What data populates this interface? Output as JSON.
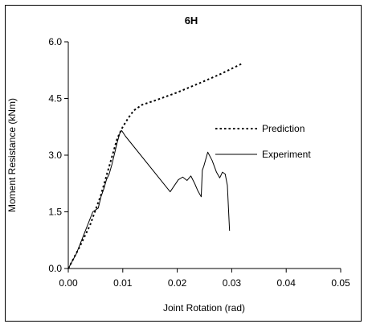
{
  "chart_data": {
    "type": "line",
    "title": "6H",
    "xlabel": "Joint Rotation (rad)",
    "ylabel": "Moment Resistance (kNm)",
    "xlim": [
      0,
      0.05
    ],
    "ylim": [
      0,
      6.0
    ],
    "x_ticks": [
      "0.00",
      "0.01",
      "0.02",
      "0.03",
      "0.04",
      "0.05"
    ],
    "y_ticks": [
      "0.0",
      "1.5",
      "3.0",
      "4.5",
      "6.0"
    ],
    "legend_position": "right",
    "series": [
      {
        "name": "Prediction",
        "style": "dotted",
        "color": "#000000",
        "points": [
          [
            0.0,
            0.0
          ],
          [
            0.002,
            0.55
          ],
          [
            0.004,
            1.15
          ],
          [
            0.006,
            1.95
          ],
          [
            0.007,
            2.45
          ],
          [
            0.008,
            2.95
          ],
          [
            0.009,
            3.45
          ],
          [
            0.01,
            3.75
          ],
          [
            0.011,
            3.98
          ],
          [
            0.012,
            4.18
          ],
          [
            0.0135,
            4.33
          ],
          [
            0.016,
            4.45
          ],
          [
            0.02,
            4.66
          ],
          [
            0.024,
            4.9
          ],
          [
            0.028,
            5.15
          ],
          [
            0.032,
            5.43
          ]
        ]
      },
      {
        "name": "Experiment",
        "style": "solid",
        "color": "#000000",
        "points": [
          [
            0.0,
            0.0
          ],
          [
            0.0015,
            0.4
          ],
          [
            0.003,
            0.95
          ],
          [
            0.0045,
            1.5
          ],
          [
            0.0055,
            1.6
          ],
          [
            0.006,
            1.9
          ],
          [
            0.0065,
            2.1
          ],
          [
            0.007,
            2.35
          ],
          [
            0.0075,
            2.5
          ],
          [
            0.008,
            2.75
          ],
          [
            0.0085,
            3.05
          ],
          [
            0.009,
            3.35
          ],
          [
            0.0095,
            3.6
          ],
          [
            0.0098,
            3.65
          ],
          [
            0.0105,
            3.5
          ],
          [
            0.0187,
            2.03
          ],
          [
            0.0202,
            2.35
          ],
          [
            0.021,
            2.42
          ],
          [
            0.0218,
            2.33
          ],
          [
            0.0225,
            2.45
          ],
          [
            0.0232,
            2.25
          ],
          [
            0.0238,
            2.05
          ],
          [
            0.0244,
            1.9
          ],
          [
            0.0246,
            2.6
          ],
          [
            0.0249,
            2.72
          ],
          [
            0.0256,
            3.08
          ],
          [
            0.0264,
            2.86
          ],
          [
            0.0272,
            2.55
          ],
          [
            0.0278,
            2.4
          ],
          [
            0.0283,
            2.55
          ],
          [
            0.0288,
            2.5
          ],
          [
            0.0292,
            2.2
          ],
          [
            0.0294,
            1.6
          ],
          [
            0.0296,
            1.0
          ]
        ]
      }
    ]
  }
}
